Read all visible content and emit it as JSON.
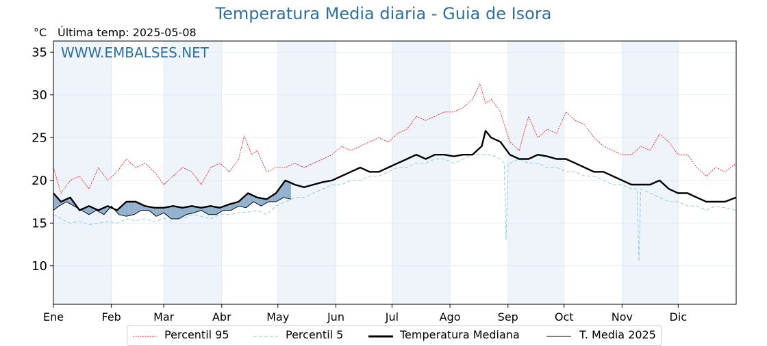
{
  "title": "Temperatura Media diaria - Guia de Isora",
  "unit_label": "°C",
  "last_temp_label": "Última temp: 2025-05-08",
  "watermark": "WWW.EMBALSES.NET",
  "colors": {
    "p95": "#ff0000",
    "p5": "#8fc9dd",
    "median": "#000000",
    "current": "#000000",
    "above_fill": "#e8a2a8",
    "below_fill": "#8eaecb",
    "below_dark_fill": "#1f5f8f",
    "band": "#eef4fa",
    "title": "#2f6f9f"
  },
  "legend": {
    "p95": "Percentil 95",
    "p5": "Percentil 5",
    "median": "Temperatura Mediana",
    "current": "T. Media 2025"
  },
  "chart_data": {
    "type": "line",
    "title": "Temperatura Media diaria - Guia de Isora",
    "xlabel": "",
    "ylabel": "°C",
    "x_unit": "day of year",
    "xlim": [
      1,
      366
    ],
    "ylim": [
      5.5,
      36.3
    ],
    "yticks": [
      10,
      15,
      20,
      25,
      30,
      35
    ],
    "month_ticks": [
      {
        "label": "Ene",
        "day": 1
      },
      {
        "label": "Feb",
        "day": 32
      },
      {
        "label": "Mar",
        "day": 60
      },
      {
        "label": "Abr",
        "day": 91
      },
      {
        "label": "May",
        "day": 121
      },
      {
        "label": "Jun",
        "day": 152
      },
      {
        "label": "Jul",
        "day": 182
      },
      {
        "label": "Ago",
        "day": 213
      },
      {
        "label": "Sep",
        "day": 244
      },
      {
        "label": "Oct",
        "day": 274
      },
      {
        "label": "Nov",
        "day": 305
      },
      {
        "label": "Dic",
        "day": 335
      }
    ],
    "shaded_months": [
      [
        1,
        32
      ],
      [
        60,
        91
      ],
      [
        121,
        152
      ],
      [
        182,
        213
      ],
      [
        244,
        274
      ],
      [
        305,
        335
      ]
    ],
    "grid": true,
    "legend_position": "bottom-center",
    "series": [
      {
        "name": "Percentil 95",
        "style": "dotted-red",
        "x": [
          1,
          5,
          10,
          15,
          20,
          25,
          30,
          35,
          40,
          45,
          50,
          55,
          60,
          65,
          70,
          75,
          80,
          85,
          90,
          95,
          100,
          103,
          107,
          110,
          115,
          120,
          125,
          130,
          135,
          140,
          145,
          150,
          155,
          160,
          165,
          170,
          175,
          180,
          185,
          190,
          195,
          200,
          205,
          210,
          215,
          220,
          225,
          229,
          232,
          235,
          240,
          245,
          250,
          255,
          260,
          265,
          270,
          275,
          280,
          285,
          290,
          295,
          300,
          305,
          310,
          315,
          320,
          325,
          330,
          335,
          340,
          345,
          350,
          355,
          360,
          366
        ],
        "y": [
          21.5,
          18.5,
          20.0,
          20.5,
          19.0,
          21.5,
          20.0,
          21.0,
          22.5,
          21.5,
          22.0,
          21.0,
          19.5,
          20.5,
          21.5,
          21.0,
          19.5,
          21.5,
          22.0,
          21.0,
          22.5,
          25.2,
          23.0,
          23.5,
          21.0,
          21.5,
          21.5,
          22.0,
          21.5,
          22.0,
          22.5,
          23.0,
          24.0,
          23.5,
          24.0,
          24.5,
          25.0,
          24.5,
          25.5,
          26.0,
          27.5,
          27.0,
          27.5,
          28.0,
          28.0,
          28.5,
          29.5,
          31.3,
          29.0,
          29.5,
          28.0,
          24.5,
          23.5,
          27.5,
          25.0,
          26.0,
          25.5,
          28.0,
          27.0,
          26.5,
          25.0,
          24.0,
          23.5,
          23.0,
          23.0,
          24.0,
          23.5,
          25.4,
          24.5,
          23.0,
          23.0,
          21.5,
          20.5,
          21.5,
          21.0,
          22.0
        ]
      },
      {
        "name": "Percentil 5",
        "style": "dashed-lightblue",
        "x": [
          1,
          5,
          10,
          15,
          20,
          25,
          30,
          35,
          40,
          45,
          50,
          55,
          60,
          65,
          70,
          75,
          80,
          85,
          90,
          95,
          100,
          105,
          110,
          115,
          120,
          125,
          130,
          135,
          140,
          145,
          150,
          155,
          160,
          165,
          170,
          175,
          180,
          185,
          190,
          195,
          200,
          205,
          210,
          215,
          220,
          225,
          230,
          235,
          240,
          242,
          243,
          244,
          245,
          250,
          255,
          260,
          265,
          270,
          275,
          280,
          285,
          290,
          295,
          300,
          305,
          310,
          313,
          314,
          315,
          320,
          325,
          330,
          335,
          340,
          345,
          350,
          355,
          360,
          366
        ],
        "y": [
          16.0,
          15.5,
          15.0,
          15.2,
          14.8,
          15.0,
          15.2,
          15.0,
          15.5,
          15.3,
          15.5,
          15.2,
          15.5,
          15.8,
          15.5,
          16.0,
          15.8,
          15.5,
          16.0,
          16.0,
          16.2,
          16.3,
          16.5,
          16.0,
          17.0,
          17.5,
          18.0,
          18.0,
          18.5,
          19.0,
          19.5,
          19.5,
          20.0,
          20.0,
          20.5,
          20.5,
          21.0,
          21.5,
          21.5,
          22.0,
          22.0,
          22.5,
          22.5,
          22.0,
          22.5,
          23.0,
          23.0,
          23.0,
          22.5,
          22.0,
          13.0,
          22.0,
          22.0,
          22.5,
          22.0,
          22.0,
          21.5,
          21.5,
          21.0,
          21.0,
          20.5,
          20.5,
          20.0,
          19.5,
          19.5,
          19.0,
          19.0,
          10.5,
          19.0,
          18.5,
          18.0,
          17.5,
          17.5,
          17.0,
          17.0,
          16.5,
          17.0,
          16.8,
          16.5
        ]
      },
      {
        "name": "Temperatura Mediana",
        "style": "thick-black",
        "x": [
          1,
          5,
          10,
          15,
          20,
          25,
          30,
          35,
          40,
          45,
          50,
          55,
          60,
          65,
          70,
          75,
          80,
          85,
          90,
          95,
          100,
          105,
          110,
          115,
          120,
          125,
          130,
          135,
          140,
          145,
          150,
          155,
          160,
          165,
          170,
          175,
          180,
          185,
          190,
          195,
          200,
          205,
          210,
          215,
          220,
          225,
          230,
          232,
          235,
          240,
          245,
          250,
          255,
          260,
          265,
          270,
          275,
          280,
          285,
          290,
          295,
          300,
          305,
          310,
          315,
          320,
          325,
          330,
          335,
          340,
          345,
          350,
          355,
          360,
          366
        ],
        "y": [
          18.5,
          17.5,
          18.0,
          16.5,
          17.0,
          16.5,
          17.0,
          16.5,
          17.5,
          17.5,
          17.0,
          16.8,
          16.8,
          17.0,
          16.8,
          17.0,
          16.8,
          17.0,
          16.8,
          17.2,
          17.5,
          18.5,
          18.0,
          17.8,
          18.5,
          20.0,
          19.5,
          19.2,
          19.5,
          19.8,
          20.0,
          20.5,
          21.0,
          21.5,
          21.0,
          21.0,
          21.5,
          22.0,
          22.5,
          23.0,
          22.5,
          23.0,
          23.0,
          22.8,
          23.0,
          23.0,
          24.0,
          25.8,
          25.0,
          24.5,
          23.0,
          22.5,
          22.5,
          23.0,
          22.8,
          22.5,
          22.5,
          22.0,
          21.5,
          21.0,
          21.0,
          20.5,
          20.0,
          19.5,
          19.5,
          19.5,
          20.0,
          19.0,
          18.5,
          18.5,
          18.0,
          17.5,
          17.5,
          17.5,
          18.0
        ]
      },
      {
        "name": "T. Media 2025",
        "style": "thin-black",
        "x": [
          1,
          4,
          8,
          12,
          16,
          20,
          24,
          28,
          32,
          36,
          40,
          44,
          48,
          52,
          56,
          60,
          64,
          68,
          72,
          76,
          80,
          84,
          88,
          92,
          96,
          100,
          104,
          108,
          112,
          116,
          120,
          124,
          128
        ],
        "y": [
          16.5,
          17.0,
          17.5,
          17.0,
          16.5,
          16.0,
          16.5,
          16.0,
          17.0,
          16.0,
          15.8,
          16.0,
          16.5,
          16.5,
          15.8,
          16.2,
          15.5,
          15.5,
          16.0,
          16.2,
          16.5,
          16.0,
          16.0,
          16.5,
          16.5,
          17.0,
          16.8,
          17.5,
          17.0,
          17.5,
          17.5,
          18.0,
          17.8
        ]
      }
    ]
  }
}
